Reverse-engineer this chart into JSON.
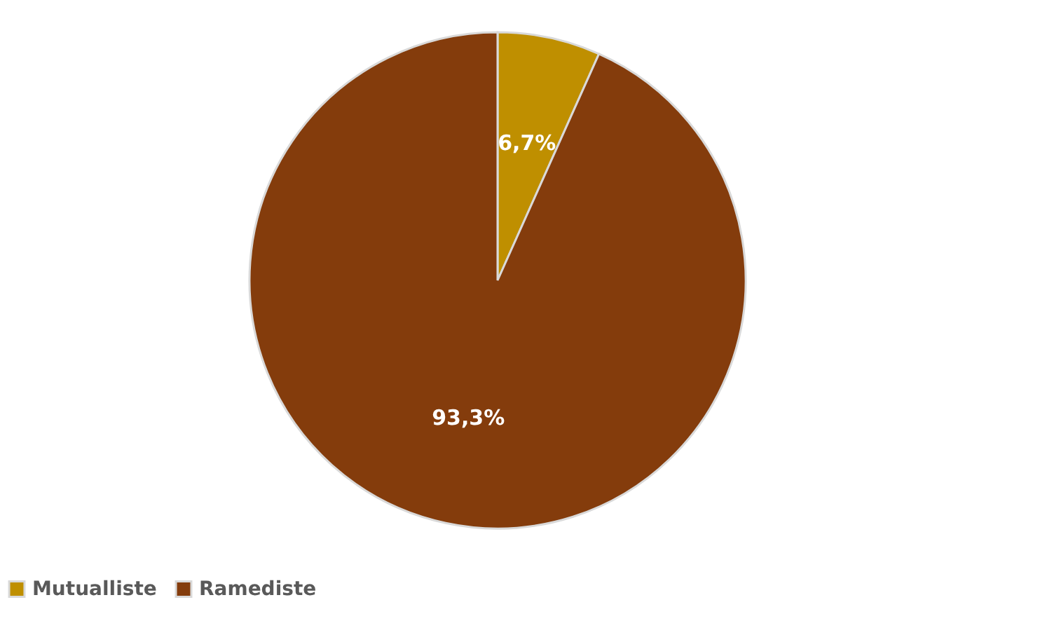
{
  "chart_data": {
    "type": "pie",
    "categories": [
      "Mutualliste",
      "Ramediste"
    ],
    "values": [
      6.7,
      93.3
    ],
    "colors": [
      "#bf8f00",
      "#843c0c"
    ],
    "value_labels": [
      "6,7%",
      "93,3%"
    ],
    "legend": "bottom"
  }
}
